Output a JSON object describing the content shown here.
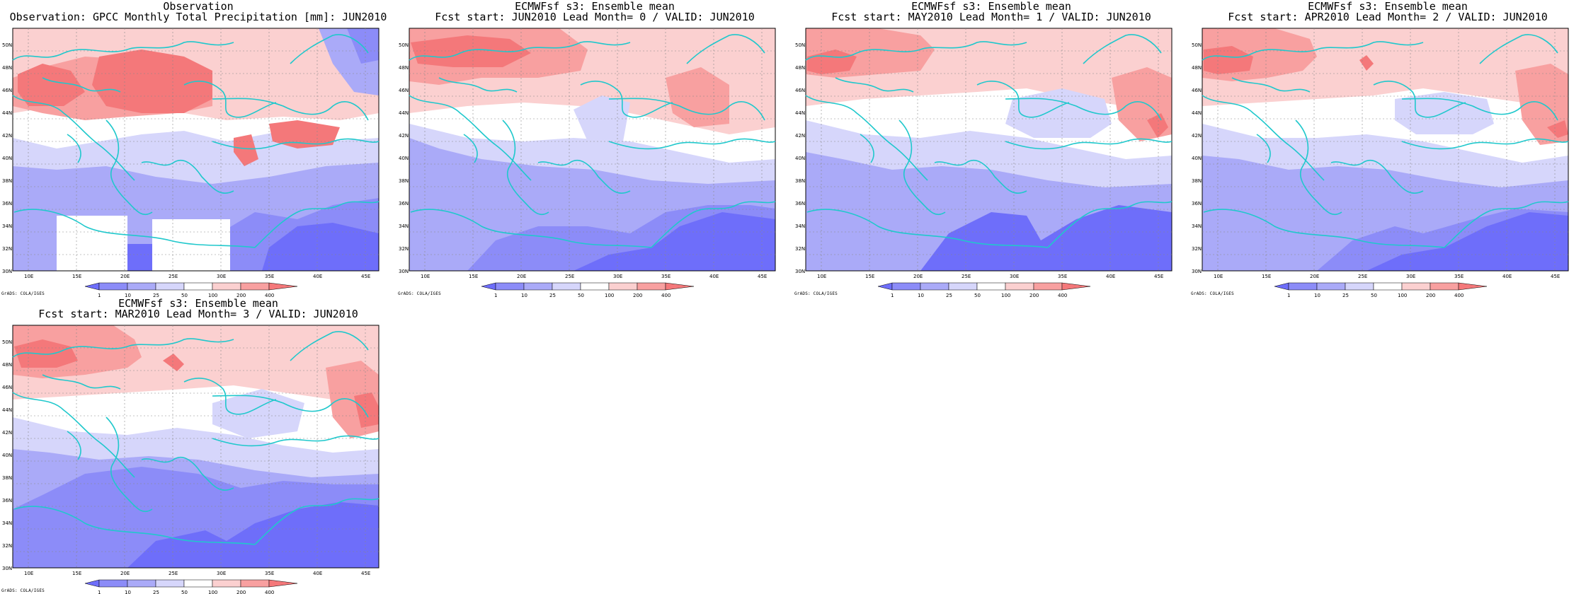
{
  "colors": {
    "deep_red": "#f4787a",
    "red": "#f8a0a0",
    "pink": "#fbd0d0",
    "white": "#ffffff",
    "lav": "#d6d6fb",
    "blue": "#aaaaf8",
    "mid_blue": "#8c8cf8",
    "deep_blue": "#6e6efa",
    "coast": "#20c8cc"
  },
  "axes": {
    "lon_labels": [
      "10E",
      "15E",
      "20E",
      "25E",
      "30E",
      "35E",
      "40E",
      "45E"
    ],
    "lat_labels": [
      "30N",
      "32N",
      "34N",
      "36N",
      "38N",
      "40N",
      "42N",
      "44N",
      "46N",
      "48N",
      "50N"
    ]
  },
  "colorbar": {
    "labels": [
      "1",
      "10",
      "25",
      "50",
      "100",
      "200",
      "400"
    ],
    "colors": [
      "#6e6efa",
      "#8c8cf8",
      "#aaaaf8",
      "#d6d6fb",
      "#ffffff",
      "#fbd0d0",
      "#f8a0a0",
      "#f4787a"
    ]
  },
  "grads_credit": "GrADS: COLA/IGES",
  "panels": [
    {
      "title_line1": "Observation",
      "title_line2": "Observation: GPCC Monthly Total Precipitation [mm]: JUN2010"
    },
    {
      "title_line1": "ECMWFsf s3: Ensemble mean",
      "title_line2": "Fcst start: JUN2010  Lead Month= 0 / VALID: JUN2010"
    },
    {
      "title_line1": "ECMWFsf s3: Ensemble mean",
      "title_line2": "Fcst start: MAY2010  Lead Month= 1 / VALID: JUN2010"
    },
    {
      "title_line1": "ECMWFsf s3: Ensemble mean",
      "title_line2": "Fcst start: APR2010  Lead Month= 2 / VALID: JUN2010"
    },
    {
      "title_line1": "ECMWFsf s3: Ensemble mean",
      "title_line2": "Fcst start: MAR2010  Lead Month= 3 / VALID: JUN2010"
    }
  ]
}
